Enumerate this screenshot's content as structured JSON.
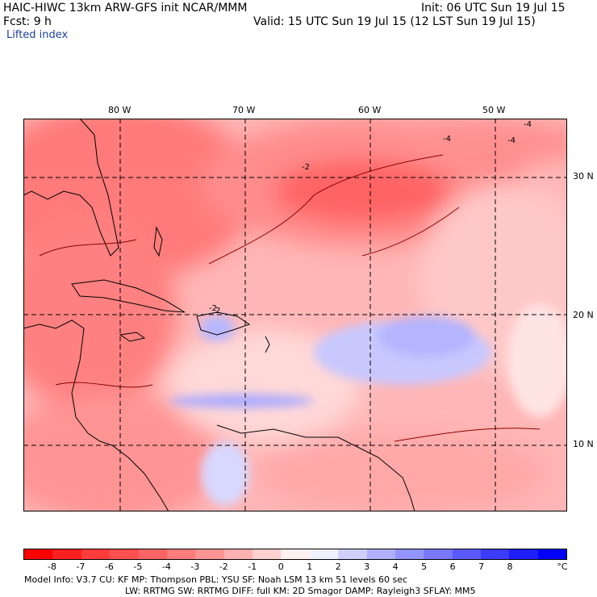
{
  "header": {
    "title": "HAIC-HIWC 13km ARW-GFS init   NCAR/MMM",
    "init": "Init: 06 UTC Sun 19 Jul 15",
    "fcst": "Fcst:     9 h",
    "valid": "Valid: 15 UTC Sun 19 Jul 15 (12 LST Sun 19 Jul 15)",
    "field": "Lifted index"
  },
  "map": {
    "lon_labels": [
      "80 W",
      "70 W",
      "60 W",
      "50 W"
    ],
    "lat_labels": [
      "30 N",
      "20 N",
      "10 N"
    ],
    "contour_labels": [
      "-4",
      "-2",
      "-4",
      "-2",
      "-4",
      "2"
    ]
  },
  "colorbar": {
    "ticks": [
      "-8",
      "-7",
      "-6",
      "-5",
      "-4",
      "-3",
      "-2",
      "-1",
      "0",
      "1",
      "2",
      "3",
      "4",
      "5",
      "6",
      "7",
      "8"
    ],
    "unit": "°C",
    "colors": [
      "#ff0000",
      "#ff2020",
      "#ff3c3c",
      "#ff5050",
      "#ff6464",
      "#ff7c7c",
      "#ff9494",
      "#ffb0b0",
      "#ffd0d0",
      "#fff0f0",
      "#f0f0ff",
      "#d0d0ff",
      "#b0b0ff",
      "#9494ff",
      "#7878ff",
      "#5a5aff",
      "#3c3cff",
      "#1e1eff",
      "#0000ff"
    ]
  },
  "footer": {
    "line1": "Model Info: V3.7      CU: KF      MP: Thompson     PBL: YSU       SF: Noah LSM    13 km    51 levels   60 sec",
    "line2": "LW: RRTMG    SW: RRTMG   DIFF: full    KM: 2D Smagor DAMP: Rayleigh3  SFLAY: MM5"
  }
}
